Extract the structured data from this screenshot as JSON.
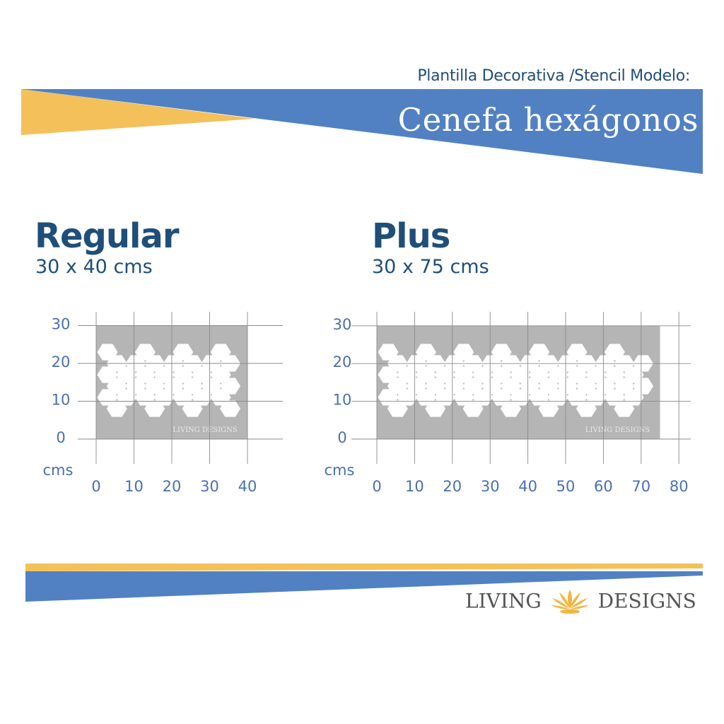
{
  "header": {
    "subtitle": "Plantilla Decorativa /Stencil Modelo:",
    "title": "Cenefa hexágonos"
  },
  "colors": {
    "blue": "#5181c2",
    "yellow": "#f4c05a",
    "navy": "#1f4e79",
    "axis_blue": "#4a6fb0",
    "stencil_gray": "#b5b5b5"
  },
  "variants": [
    {
      "name": "Regular",
      "size": "30 x 40 cms"
    },
    {
      "name": "Plus",
      "size": "30 x 75 cms"
    }
  ],
  "chart_data": [
    {
      "type": "diagram",
      "unit_label": "cms",
      "x_ticks": [
        "0",
        "10",
        "20",
        "30",
        "40"
      ],
      "y_ticks": [
        "0",
        "10",
        "20",
        "30"
      ],
      "stencil_width_cm": 40,
      "stencil_height_cm": 30,
      "watermark": "LIVING DESIGNS"
    },
    {
      "type": "diagram",
      "unit_label": "cms",
      "x_ticks": [
        "0",
        "10",
        "20",
        "30",
        "40",
        "50",
        "60",
        "70",
        "80"
      ],
      "y_ticks": [
        "0",
        "10",
        "20",
        "30"
      ],
      "stencil_width_cm": 75,
      "stencil_height_cm": 30,
      "watermark": "LIVING DESIGNS"
    }
  ],
  "brand": {
    "left": "LIVING",
    "right": "DESIGNS",
    "icon": "lotus-icon"
  }
}
